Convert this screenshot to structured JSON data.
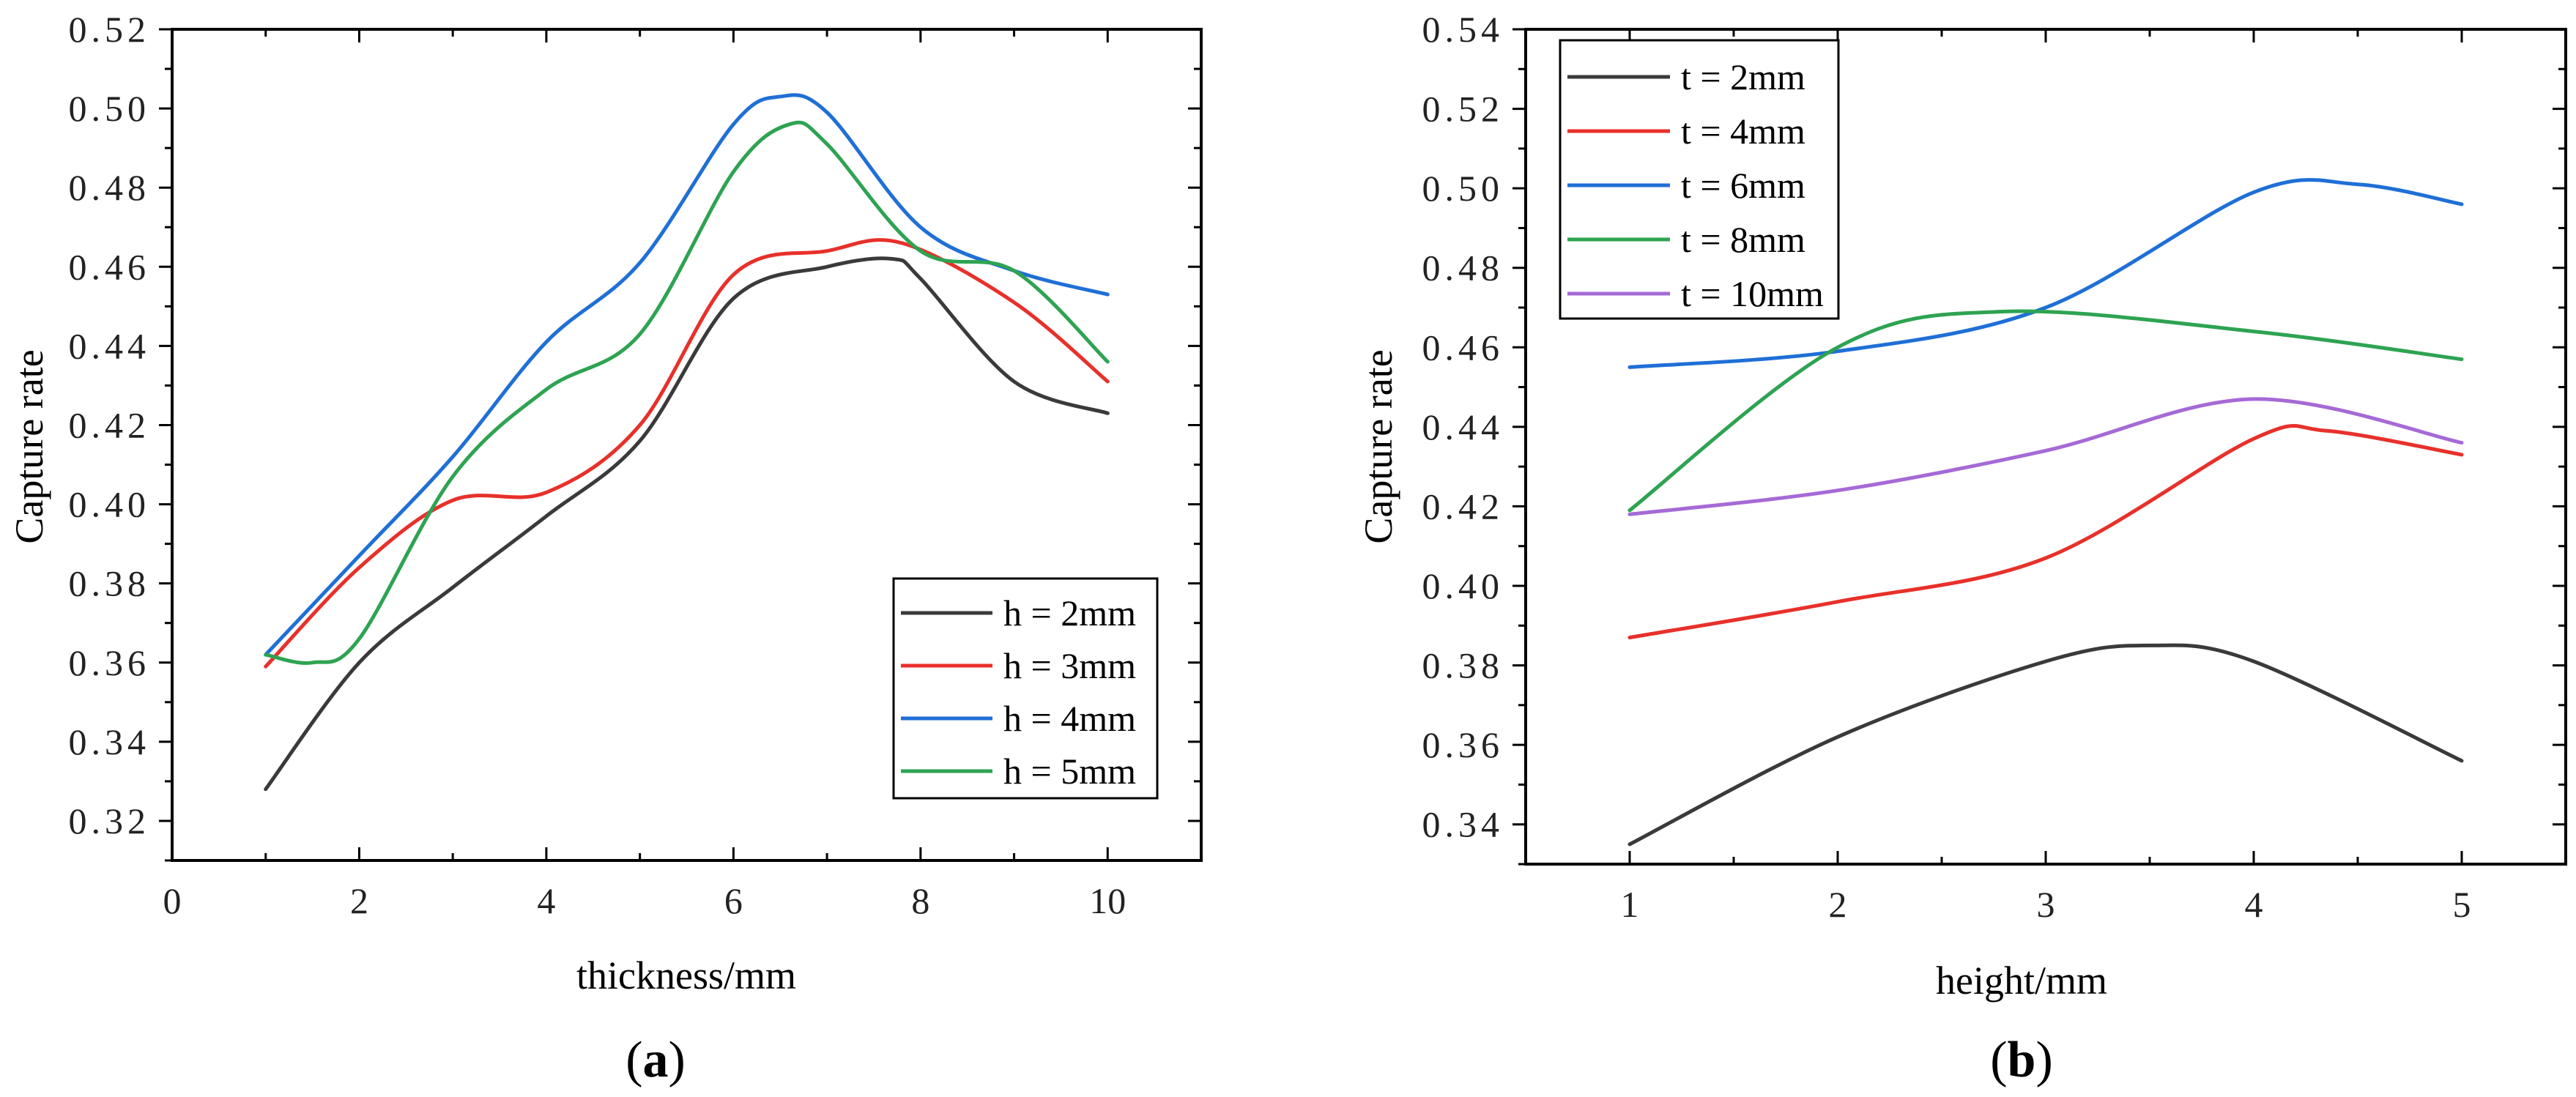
{
  "chart_data": [
    {
      "panel_label": "a",
      "type": "line",
      "xlabel": "thickness/mm",
      "ylabel": "Capture rate",
      "xlim": [
        0,
        11
      ],
      "ylim": [
        0.31,
        0.52
      ],
      "xticks": [
        0,
        2,
        4,
        6,
        8,
        10
      ],
      "xtick_labels": [
        "0",
        "2",
        "4",
        "6",
        "8",
        "10"
      ],
      "yticks": [
        0.32,
        0.34,
        0.36,
        0.38,
        0.4,
        0.42,
        0.44,
        0.46,
        0.48,
        0.5,
        0.52
      ],
      "ytick_labels": [
        "0.32",
        "0.34",
        "0.36",
        "0.38",
        "0.40",
        "0.42",
        "0.44",
        "0.46",
        "0.48",
        "0.50",
        "0.52"
      ],
      "legend_position": "bottom-right",
      "series": [
        {
          "name": "h = 2mm",
          "color": "#3a3a3a",
          "x": [
            1,
            2,
            3,
            4,
            5,
            6,
            7,
            7.7,
            8,
            9,
            10
          ],
          "y": [
            0.328,
            0.36,
            0.379,
            0.397,
            0.416,
            0.452,
            0.46,
            0.462,
            0.457,
            0.431,
            0.423
          ]
        },
        {
          "name": "h = 3mm",
          "color": "#e8302a",
          "x": [
            1,
            2,
            3,
            4,
            5,
            6,
            7,
            7.8,
            9,
            10
          ],
          "y": [
            0.359,
            0.384,
            0.401,
            0.403,
            0.42,
            0.458,
            0.464,
            0.466,
            0.451,
            0.431
          ]
        },
        {
          "name": "h = 4mm",
          "color": "#1f6fd6",
          "x": [
            1,
            2,
            3,
            4,
            5,
            6,
            6.5,
            7,
            8,
            9,
            10
          ],
          "y": [
            0.362,
            0.387,
            0.412,
            0.441,
            0.461,
            0.496,
            0.503,
            0.499,
            0.47,
            0.459,
            0.453
          ]
        },
        {
          "name": "h = 5mm",
          "color": "#2ea352",
          "x": [
            1,
            1.5,
            2,
            3,
            4,
            5,
            6,
            6.6,
            7,
            8,
            9,
            10
          ],
          "y": [
            0.362,
            0.36,
            0.366,
            0.407,
            0.429,
            0.443,
            0.484,
            0.496,
            0.491,
            0.464,
            0.459,
            0.436
          ]
        }
      ]
    },
    {
      "panel_label": "b",
      "type": "line",
      "xlabel": "height/mm",
      "ylabel": "Capture rate",
      "xlim": [
        0.5,
        5.5
      ],
      "ylim": [
        0.33,
        0.54
      ],
      "xticks": [
        1,
        2,
        3,
        4,
        5
      ],
      "xtick_labels": [
        "1",
        "2",
        "3",
        "4",
        "5"
      ],
      "yticks": [
        0.34,
        0.36,
        0.38,
        0.4,
        0.42,
        0.44,
        0.46,
        0.48,
        0.5,
        0.52,
        0.54
      ],
      "ytick_labels": [
        "0.34",
        "0.36",
        "0.38",
        "0.40",
        "0.42",
        "0.44",
        "0.46",
        "0.48",
        "0.50",
        "0.52",
        "0.54"
      ],
      "legend_position": "top-left",
      "series": [
        {
          "name": "t = 2mm",
          "color": "#3a3a3a",
          "x": [
            1,
            2,
            3,
            3.5,
            4,
            5
          ],
          "y": [
            0.335,
            0.362,
            0.381,
            0.385,
            0.381,
            0.356
          ]
        },
        {
          "name": "t = 4mm",
          "color": "#e8302a",
          "x": [
            1,
            2,
            3,
            4,
            4.35,
            5
          ],
          "y": [
            0.387,
            0.396,
            0.407,
            0.437,
            0.439,
            0.433
          ]
        },
        {
          "name": "t = 6mm",
          "color": "#1f6fd6",
          "x": [
            1,
            2,
            3,
            4,
            4.5,
            5
          ],
          "y": [
            0.455,
            0.459,
            0.47,
            0.499,
            0.501,
            0.496
          ]
        },
        {
          "name": "t = 8mm",
          "color": "#2ea352",
          "x": [
            1,
            2,
            2.8,
            4,
            5
          ],
          "y": [
            0.419,
            0.46,
            0.469,
            0.464,
            0.457
          ]
        },
        {
          "name": "t = 10mm",
          "color": "#a56ad6",
          "x": [
            1,
            2,
            3,
            4,
            5
          ],
          "y": [
            0.418,
            0.424,
            0.434,
            0.447,
            0.436
          ]
        }
      ]
    }
  ]
}
